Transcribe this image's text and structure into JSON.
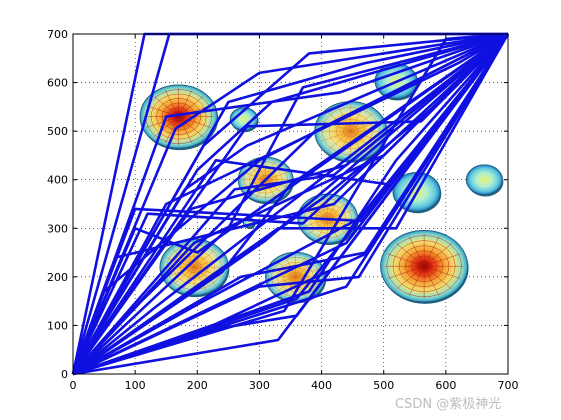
{
  "chart_data": {
    "type": "line",
    "title": "",
    "xlabel": "",
    "ylabel": "",
    "xlim": [
      0,
      700
    ],
    "ylim": [
      0,
      700
    ],
    "xticks": [
      0,
      100,
      200,
      300,
      400,
      500,
      600,
      700
    ],
    "yticks": [
      0,
      100,
      200,
      300,
      400,
      500,
      600,
      700
    ],
    "grid": "dotted",
    "legend": "none",
    "colors": {
      "path": "#1010e0",
      "axes": "#000000"
    },
    "obstacles": [
      {
        "x": 170,
        "y": 530,
        "r": 62,
        "peak": "high"
      },
      {
        "x": 275,
        "y": 525,
        "r": 22,
        "peak": "low"
      },
      {
        "x": 447,
        "y": 500,
        "r": 58,
        "peak": "mid"
      },
      {
        "x": 520,
        "y": 603,
        "r": 34,
        "peak": "low"
      },
      {
        "x": 310,
        "y": 400,
        "r": 44,
        "peak": "mid"
      },
      {
        "x": 553,
        "y": 375,
        "r": 38,
        "peak": "low"
      },
      {
        "x": 662,
        "y": 400,
        "r": 29,
        "peak": "low"
      },
      {
        "x": 410,
        "y": 320,
        "r": 48,
        "peak": "mid"
      },
      {
        "x": 283,
        "y": 312,
        "r": 9,
        "peak": "low"
      },
      {
        "x": 195,
        "y": 220,
        "r": 55,
        "peak": "mid"
      },
      {
        "x": 358,
        "y": 200,
        "r": 48,
        "peak": "mid"
      },
      {
        "x": 565,
        "y": 222,
        "r": 70,
        "peak": "high"
      }
    ],
    "series": [
      {
        "values": [
          [
            0,
            0
          ],
          [
            100,
            340
          ],
          [
            465,
            315
          ],
          [
            700,
            700
          ]
        ]
      },
      {
        "values": [
          [
            0,
            0
          ],
          [
            115,
            700
          ],
          [
            700,
            700
          ]
        ]
      },
      {
        "values": [
          [
            0,
            0
          ],
          [
            155,
            700
          ],
          [
            700,
            700
          ]
        ]
      },
      {
        "values": [
          [
            0,
            0
          ],
          [
            330,
            70
          ],
          [
            700,
            700
          ]
        ]
      },
      {
        "values": [
          [
            0,
            0
          ],
          [
            360,
            155
          ],
          [
            700,
            700
          ]
        ]
      },
      {
        "values": [
          [
            0,
            0
          ],
          [
            440,
            270
          ],
          [
            700,
            700
          ]
        ]
      },
      {
        "values": [
          [
            0,
            0
          ],
          [
            240,
            95
          ],
          [
            360,
            120
          ],
          [
            700,
            700
          ]
        ]
      },
      {
        "values": [
          [
            0,
            0
          ],
          [
            195,
            270
          ],
          [
            500,
            450
          ],
          [
            700,
            700
          ]
        ]
      },
      {
        "values": [
          [
            0,
            0
          ],
          [
            270,
            200
          ],
          [
            470,
            250
          ],
          [
            700,
            700
          ]
        ]
      },
      {
        "values": [
          [
            0,
            0
          ],
          [
            210,
            150
          ],
          [
            460,
            320
          ],
          [
            700,
            700
          ]
        ]
      },
      {
        "values": [
          [
            0,
            0
          ],
          [
            120,
            330
          ],
          [
            370,
            310
          ],
          [
            700,
            700
          ]
        ]
      },
      {
        "values": [
          [
            0,
            0
          ],
          [
            150,
            530
          ],
          [
            430,
            580
          ],
          [
            700,
            700
          ]
        ]
      },
      {
        "values": [
          [
            0,
            0
          ],
          [
            200,
            420
          ],
          [
            320,
            560
          ],
          [
            700,
            700
          ]
        ]
      },
      {
        "values": [
          [
            0,
            0
          ],
          [
            250,
            560
          ],
          [
            470,
            640
          ],
          [
            700,
            700
          ]
        ]
      },
      {
        "values": [
          [
            0,
            0
          ],
          [
            210,
            470
          ],
          [
            380,
            660
          ],
          [
            700,
            700
          ]
        ]
      },
      {
        "values": [
          [
            0,
            0
          ],
          [
            260,
            380
          ],
          [
            420,
            410
          ],
          [
            700,
            700
          ]
        ]
      },
      {
        "values": [
          [
            0,
            0
          ],
          [
            190,
            340
          ],
          [
            440,
            430
          ],
          [
            700,
            700
          ]
        ]
      },
      {
        "values": [
          [
            0,
            0
          ],
          [
            100,
            300
          ],
          [
            200,
            250
          ],
          [
            700,
            700
          ]
        ]
      },
      {
        "values": [
          [
            0,
            0
          ],
          [
            440,
            180
          ],
          [
            700,
            700
          ]
        ]
      },
      {
        "values": [
          [
            0,
            0
          ],
          [
            310,
            275
          ],
          [
            700,
            700
          ]
        ]
      },
      {
        "values": [
          [
            0,
            0
          ],
          [
            340,
            130
          ],
          [
            600,
            690
          ],
          [
            700,
            700
          ]
        ]
      },
      {
        "values": [
          [
            0,
            0
          ],
          [
            130,
            135
          ],
          [
            700,
            700
          ]
        ]
      },
      {
        "values": [
          [
            0,
            0
          ],
          [
            230,
            440
          ],
          [
            510,
            390
          ],
          [
            700,
            700
          ]
        ]
      },
      {
        "values": [
          [
            0,
            0
          ],
          [
            280,
            510
          ],
          [
            560,
            520
          ],
          [
            700,
            700
          ]
        ]
      },
      {
        "values": [
          [
            0,
            0
          ],
          [
            165,
            505
          ],
          [
            300,
            620
          ],
          [
            700,
            700
          ]
        ]
      },
      {
        "values": [
          [
            0,
            0
          ],
          [
            330,
            300
          ],
          [
            520,
            300
          ],
          [
            700,
            700
          ]
        ]
      },
      {
        "values": [
          [
            0,
            0
          ],
          [
            240,
            210
          ],
          [
            350,
            390
          ],
          [
            700,
            700
          ]
        ]
      },
      {
        "values": [
          [
            0,
            0
          ],
          [
            70,
            240
          ],
          [
            420,
            350
          ],
          [
            700,
            700
          ]
        ]
      },
      {
        "values": [
          [
            0,
            0
          ],
          [
            110,
            150
          ],
          [
            390,
            500
          ],
          [
            700,
            700
          ]
        ]
      },
      {
        "values": [
          [
            0,
            0
          ],
          [
            180,
            380
          ],
          [
            280,
            470
          ],
          [
            700,
            700
          ]
        ]
      },
      {
        "values": [
          [
            0,
            0
          ],
          [
            400,
            360
          ],
          [
            590,
            560
          ],
          [
            700,
            700
          ]
        ]
      },
      {
        "values": [
          [
            0,
            0
          ],
          [
            250,
            300
          ],
          [
            370,
            590
          ],
          [
            700,
            700
          ]
        ]
      },
      {
        "values": [
          [
            0,
            0
          ],
          [
            380,
            170
          ],
          [
            520,
            440
          ],
          [
            700,
            700
          ]
        ]
      },
      {
        "values": [
          [
            0,
            0
          ],
          [
            150,
            350
          ],
          [
            620,
            640
          ],
          [
            700,
            700
          ]
        ]
      },
      {
        "values": [
          [
            0,
            0
          ],
          [
            50,
            170
          ],
          [
            300,
            440
          ],
          [
            700,
            700
          ]
        ]
      },
      {
        "values": [
          [
            0,
            0
          ],
          [
            225,
            100
          ],
          [
            475,
            250
          ],
          [
            700,
            700
          ]
        ]
      },
      {
        "values": [
          [
            0,
            0
          ],
          [
            300,
            180
          ],
          [
            460,
            200
          ],
          [
            700,
            700
          ]
        ]
      }
    ]
  },
  "watermark": "CSDN @紫极神光"
}
